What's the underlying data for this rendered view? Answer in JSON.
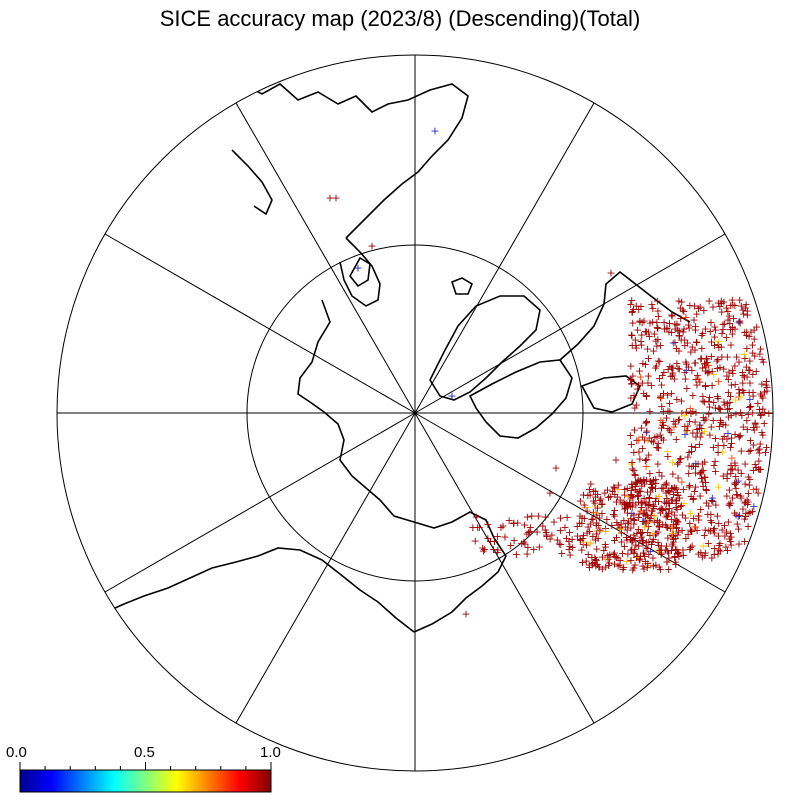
{
  "title": "SICE accuracy map (2023/8) (Descending)(Total)",
  "colorbar": {
    "min_label": "0.0",
    "mid_label": "0.5",
    "max_label": "1.0",
    "min": 0.0,
    "max": 1.0,
    "colors": [
      "#00008f",
      "#0000ff",
      "#0080ff",
      "#00ffff",
      "#80ff80",
      "#ffff00",
      "#ff8000",
      "#ff0000",
      "#800000"
    ]
  },
  "projection": "north-polar-stereographic",
  "graticule": {
    "meridian_step_deg": 30,
    "inner_circle": true
  },
  "marker": {
    "symbol": "+",
    "dominant_color": "#a00000"
  }
}
